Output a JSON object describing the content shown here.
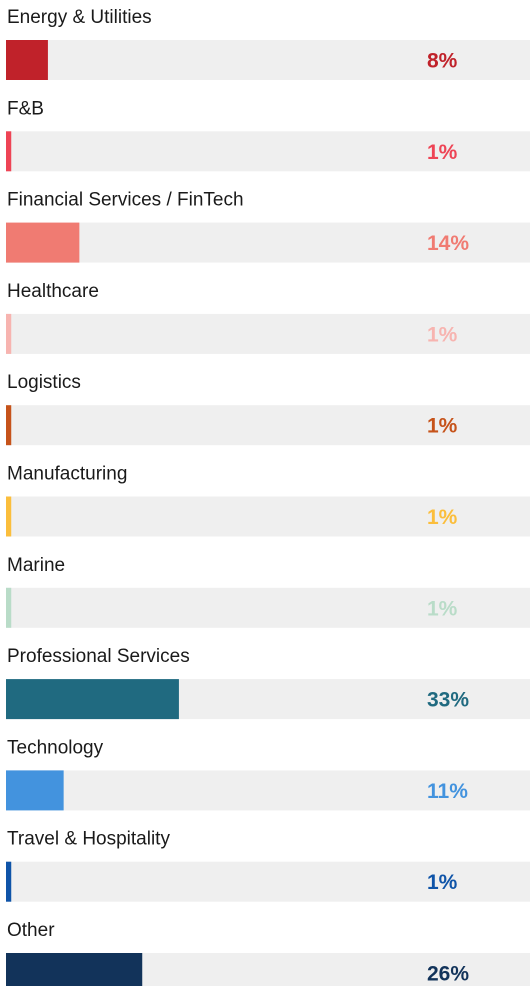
{
  "chart_data": {
    "type": "bar",
    "orientation": "horizontal",
    "categories": [
      "Energy & Utilities",
      "F&B",
      "Financial Services / FinTech",
      "Healthcare",
      "Logistics",
      "Manufacturing",
      "Marine",
      "Professional Services",
      "Technology",
      "Travel & Hospitality",
      "Other"
    ],
    "values": [
      8,
      1,
      14,
      1,
      1,
      1,
      1,
      33,
      11,
      1,
      26
    ],
    "value_labels": [
      "8%",
      "1%",
      "14%",
      "1%",
      "1%",
      "1%",
      "1%",
      "33%",
      "11%",
      "1%",
      "26%"
    ],
    "colors": [
      "#c0222a",
      "#ee4455",
      "#f07b72",
      "#f7b4b0",
      "#c6531a",
      "#fbbe3c",
      "#b9dcc8",
      "#206a80",
      "#4393de",
      "#0f54a8",
      "#12335a"
    ],
    "xlim": [
      0,
      100
    ]
  }
}
